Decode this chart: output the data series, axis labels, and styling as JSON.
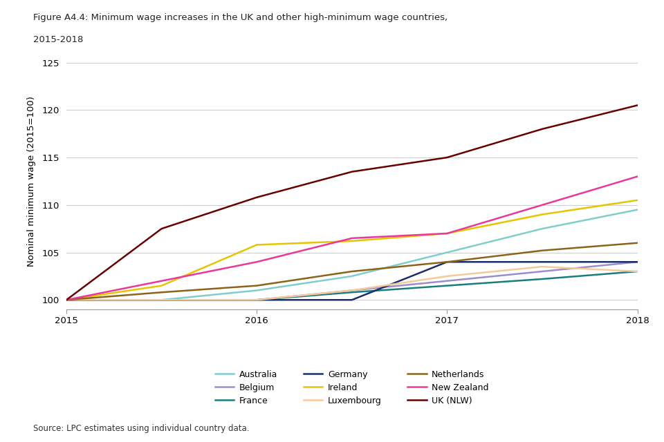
{
  "title_line1": "Figure A4.4: Minimum wage increases in the UK and other high-minimum wage countries,",
  "title_line2": "2015-2018",
  "ylabel": "Nominal minimum wage (2015=100)",
  "source": "Source: LPC estimates using individual country data.",
  "xlim": [
    2015,
    2018
  ],
  "ylim": [
    99.0,
    126.0
  ],
  "yticks": [
    100,
    105,
    110,
    115,
    120,
    125
  ],
  "xticks": [
    2015,
    2016,
    2017,
    2018
  ],
  "x": [
    2015.0,
    2015.5,
    2016.0,
    2016.5,
    2017.0,
    2017.5,
    2018.0
  ],
  "series": {
    "Australia": {
      "color": "#7ECECE",
      "values": [
        100,
        100.0,
        101.0,
        102.5,
        105.0,
        107.5,
        109.5
      ]
    },
    "Belgium": {
      "color": "#9B8DCA",
      "values": [
        100,
        100.0,
        100.0,
        101.0,
        102.0,
        103.0,
        104.0
      ]
    },
    "France": {
      "color": "#1A7E7E",
      "values": [
        100,
        100.0,
        100.0,
        100.8,
        101.5,
        102.2,
        103.0
      ]
    },
    "Germany": {
      "color": "#1A2E6B",
      "values": [
        100,
        100.0,
        100.0,
        100.0,
        104.0,
        104.0,
        104.0
      ]
    },
    "Ireland": {
      "color": "#E8C300",
      "values": [
        100,
        101.5,
        105.8,
        106.2,
        107.0,
        109.0,
        110.5
      ]
    },
    "Luxembourg": {
      "color": "#F5C99A",
      "values": [
        100,
        100.0,
        100.0,
        101.0,
        102.5,
        103.5,
        103.0
      ]
    },
    "Netherlands": {
      "color": "#8B6418",
      "values": [
        100,
        100.8,
        101.5,
        103.0,
        104.0,
        105.2,
        106.0
      ]
    },
    "New Zealand": {
      "color": "#E8389A",
      "values": [
        100,
        102.0,
        104.0,
        106.5,
        107.0,
        110.0,
        113.0
      ]
    },
    "UK (NLW)": {
      "color": "#680000",
      "values": [
        100,
        107.5,
        110.8,
        113.5,
        115.0,
        118.0,
        120.5
      ]
    }
  },
  "legend_order": [
    "Australia",
    "Belgium",
    "France",
    "Germany",
    "Ireland",
    "Luxembourg",
    "Netherlands",
    "New Zealand",
    "UK (NLW)"
  ],
  "background_color": "#FFFFFF",
  "grid_color": "#D0D0D0"
}
